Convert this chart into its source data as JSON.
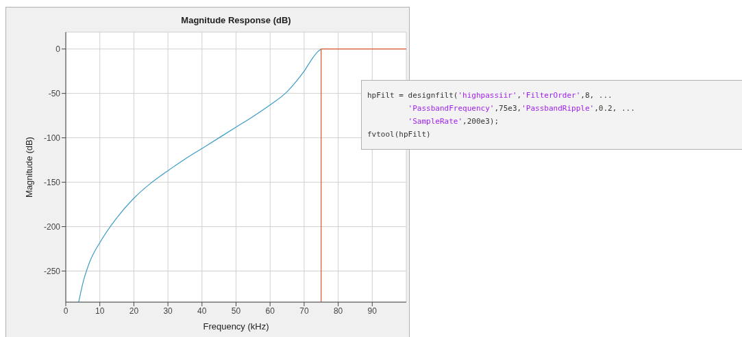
{
  "chart_data": {
    "type": "line",
    "title": "Magnitude Response (dB)",
    "xlabel": "Frequency (kHz)",
    "ylabel": "Magnitude (dB)",
    "xlim": [
      0,
      100
    ],
    "xticks": [
      0,
      10,
      20,
      30,
      40,
      50,
      60,
      70,
      80,
      90
    ],
    "ylim": [
      -285,
      19
    ],
    "yticks": [
      -250,
      -200,
      -150,
      -100,
      -50,
      0
    ],
    "grid": true,
    "line_style": "solid",
    "series": [
      {
        "color": "#3a9cc8",
        "x": [
          3.8,
          5,
          7,
          10,
          15,
          20,
          25,
          30,
          35,
          40,
          45,
          50,
          55,
          60,
          65,
          68,
          70,
          72,
          74,
          75
        ],
        "values": [
          -285,
          -264,
          -240,
          -218,
          -190,
          -168,
          -151,
          -137,
          -124,
          -112,
          -100,
          -88,
          -76,
          -63,
          -48,
          -35,
          -25,
          -13,
          -3,
          0
        ]
      },
      {
        "color": "#d9532c",
        "x": [
          75,
          75,
          100
        ],
        "values": [
          -285,
          0,
          0
        ]
      }
    ],
    "annotations": [
      "hpFilt = designfilt('highpassiir','FilterOrder',8, ...\n         'PassbandFrequency',75e3,'PassbandRipple',0.2, ...\n         'SampleRate',200e3);\nfvtool(hpFilt)"
    ]
  }
}
